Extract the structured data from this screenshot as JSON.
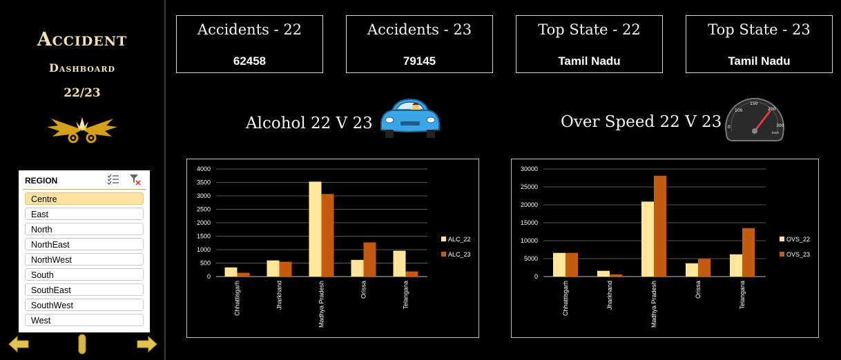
{
  "sidebar": {
    "title": "Accident",
    "subtitle": "Dashboard",
    "years": "22/23"
  },
  "slicer": {
    "title": "REGION",
    "items": [
      {
        "label": "Centre",
        "selected": true
      },
      {
        "label": "East",
        "selected": false
      },
      {
        "label": "North",
        "selected": false
      },
      {
        "label": "NorthEast",
        "selected": false
      },
      {
        "label": "NorthWest",
        "selected": false
      },
      {
        "label": "South",
        "selected": false
      },
      {
        "label": "SouthEast",
        "selected": false
      },
      {
        "label": "SouthWest",
        "selected": false
      },
      {
        "label": "West",
        "selected": false
      }
    ]
  },
  "cards": [
    {
      "title": "Accidents - 22",
      "value": "62458"
    },
    {
      "title": "Accidents - 23",
      "value": "79145"
    },
    {
      "title": "Top State - 22",
      "value": "Tamil Nadu"
    },
    {
      "title": "Top State - 23",
      "value": "Tamil Nadu"
    }
  ],
  "sections": {
    "alcohol_title": "Alcohol 22 V 23",
    "overspeed_title": "Over Speed 22 V 23"
  },
  "speedometer": {
    "ticks": [
      "0",
      "100",
      "150",
      "200",
      "300"
    ],
    "unit": "km/h"
  },
  "colors": {
    "series_22": "#ffe49a",
    "series_23": "#c55a11",
    "accent": "#f3e1b0",
    "logo": "#d4a017"
  },
  "chart_data": [
    {
      "type": "bar",
      "categories": [
        "Chhattisgarh",
        "Jharkhand",
        "Madhya Pradesh",
        "Orissa",
        "Telangana"
      ],
      "series": [
        {
          "name": "ALC_22",
          "values": [
            340,
            600,
            3530,
            620,
            960
          ]
        },
        {
          "name": "ALC_23",
          "values": [
            140,
            550,
            3070,
            1270,
            190
          ]
        }
      ],
      "ylim": [
        0,
        4000
      ],
      "yticks": [
        0,
        500,
        1000,
        1500,
        2000,
        2500,
        3000,
        3500,
        4000
      ],
      "grid": true,
      "legend": "right"
    },
    {
      "type": "bar",
      "categories": [
        "Chhattisgarh",
        "Jharkhand",
        "Madhya Pradesh",
        "Orissa",
        "Telangana"
      ],
      "series": [
        {
          "name": "OVS_22",
          "values": [
            6600,
            1600,
            20900,
            3700,
            6200
          ]
        },
        {
          "name": "OVS_23",
          "values": [
            6600,
            600,
            28100,
            4900,
            13500
          ]
        }
      ],
      "ylim": [
        0,
        30000
      ],
      "yticks": [
        0,
        5000,
        10000,
        15000,
        20000,
        25000,
        30000
      ],
      "grid": true,
      "legend": "right"
    }
  ]
}
